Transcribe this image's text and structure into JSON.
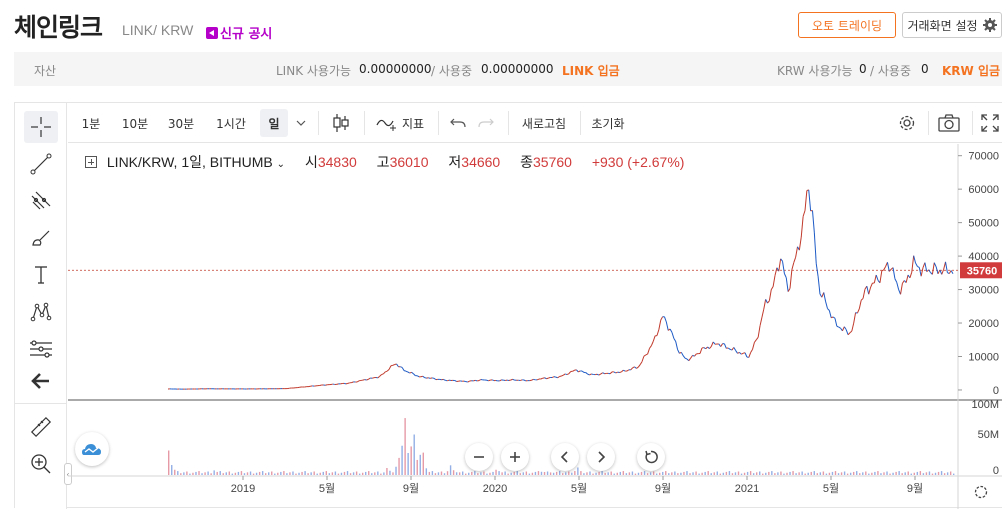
{
  "header": {
    "coin_name": "체인링크",
    "pair": "LINK/ KRW",
    "notice": "신규 공시",
    "auto_trade": "오토 트레이딩",
    "screen_settings": "거래화면 설정"
  },
  "assets": {
    "label": "자산",
    "link_available_label": "LINK 사용가능",
    "link_available": "0.00000000",
    "link_in_use_label": "/ 사용중",
    "link_in_use": "0.00000000",
    "link_deposit": "LINK 입금",
    "krw_available_label": "KRW 사용가능",
    "krw_available": "0",
    "krw_in_use_label": "/ 사용중",
    "krw_in_use": "0",
    "krw_deposit": "KRW 입금"
  },
  "toolbar": {
    "intervals": [
      "1분",
      "10분",
      "30분",
      "1시간",
      "일"
    ],
    "selected_interval": "일",
    "indicators": "지표",
    "refresh": "새로고침",
    "reset": "초기화"
  },
  "legend": {
    "symbol": "LINK/KRW, 1일, BITHUMB",
    "open_label": "시",
    "open": "34830",
    "high_label": "고",
    "high": "36010",
    "low_label": "저",
    "low": "34660",
    "close_label": "종",
    "close": "35760",
    "change": "+930 (+2.67%)"
  },
  "colors": {
    "accent": "#f37321",
    "up": "#d13b3b",
    "down": "#1e6bd6",
    "notice": "#b400c8"
  },
  "chart_data": {
    "type": "line",
    "price_axis": {
      "ticks": [
        0,
        10000,
        20000,
        30000,
        40000,
        50000,
        60000,
        70000
      ],
      "tick_labels": [
        "0",
        "10000",
        "20000",
        "30000",
        "40000",
        "50000",
        "60000",
        "70000"
      ],
      "range": [
        -3000,
        72000
      ]
    },
    "volume_axis": {
      "tick_labels": [
        "100M",
        "50M",
        "0"
      ],
      "range": [
        0,
        100
      ]
    },
    "x_labels": [
      "2019",
      "5월",
      "9월",
      "2020",
      "5월",
      "9월",
      "2021",
      "5월",
      "9월"
    ],
    "last_price": 35760,
    "last_price_label": "35760",
    "series": [
      {
        "x": [
          0,
          0.02,
          0.05,
          0.1,
          0.15,
          0.2,
          0.23,
          0.25,
          0.27,
          0.29,
          0.3,
          0.32,
          0.35,
          0.38,
          0.4,
          0.42,
          0.44,
          0.46,
          0.48,
          0.5,
          0.52,
          0.54,
          0.56,
          0.58,
          0.6,
          0.62,
          0.63,
          0.64,
          0.65,
          0.66,
          0.67,
          0.68,
          0.7,
          0.72,
          0.74,
          0.75,
          0.76,
          0.77,
          0.78,
          0.79,
          0.8,
          0.81,
          0.815,
          0.82,
          0.825,
          0.83,
          0.84,
          0.85,
          0.86,
          0.87,
          0.88,
          0.89,
          0.9,
          0.91,
          0.92,
          0.93,
          0.94,
          0.95,
          0.96,
          1.0
        ],
        "y": [
          300,
          250,
          350,
          300,
          400,
          1500,
          2000,
          3000,
          4000,
          8000,
          6000,
          4000,
          3000,
          2500,
          3000,
          2800,
          3000,
          2800,
          3500,
          4000,
          6000,
          4500,
          5000,
          5500,
          7000,
          15000,
          22000,
          18000,
          12000,
          9000,
          10000,
          12000,
          14000,
          12000,
          10000,
          15000,
          25000,
          30000,
          40000,
          30000,
          40000,
          50000,
          62000,
          55000,
          40000,
          30000,
          25000,
          20000,
          18000,
          17000,
          25000,
          30000,
          32000,
          35000,
          38000,
          30000,
          32000,
          38000,
          36000,
          35760
        ]
      }
    ],
    "volume": {
      "spike_positions": [
        0.0,
        0.06,
        0.12,
        0.2,
        0.28,
        0.3,
        0.31,
        0.32,
        0.36,
        0.42,
        0.48,
        0.52,
        0.55,
        0.62,
        0.65,
        0.75
      ],
      "spike_values": [
        35,
        8,
        5,
        6,
        12,
        90,
        75,
        50,
        15,
        10,
        8,
        12,
        6,
        4,
        3,
        5
      ]
    }
  }
}
